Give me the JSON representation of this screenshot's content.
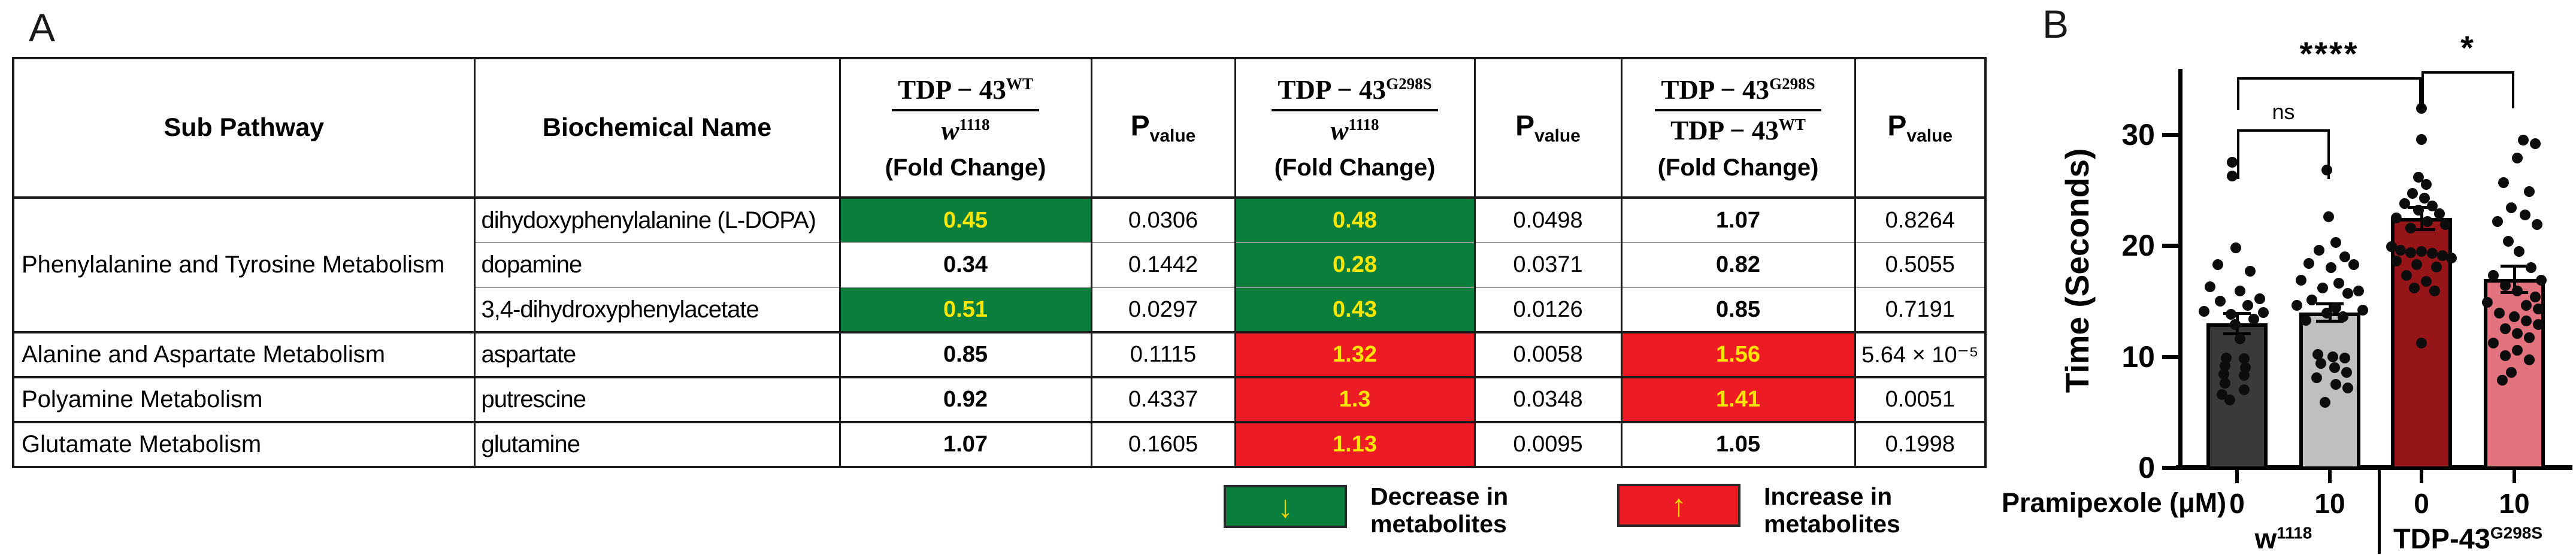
{
  "figure": {
    "panel_a_label": "A",
    "panel_b_label": "B"
  },
  "table": {
    "headers": {
      "sub_pathway": "Sub Pathway",
      "biochemical_name": "Biochemical Name",
      "fc1": {
        "num_base": "TDP − 43",
        "num_sup": "WT",
        "den_base": "w",
        "den_sup": "1118",
        "caption": "(Fold Change)"
      },
      "p": {
        "base": "P",
        "sub": "value"
      },
      "fc2": {
        "num_base": "TDP − 43",
        "num_sup": "G298S",
        "den_base": "w",
        "den_sup": "1118",
        "caption": "(Fold Change)"
      },
      "fc3": {
        "num_base": "TDP − 43",
        "num_sup": "G298S",
        "den_base": "TDP − 43",
        "den_sup": "WT",
        "caption": "(Fold Change)"
      }
    },
    "rows": [
      {
        "pathway": "Phenylalanine and Tyrosine Metabolism",
        "pathway_rowspan": 3,
        "group_start": true,
        "name": "dihydoxyphenylalanine (L-DOPA)",
        "cells": [
          {
            "v": "0.45",
            "bg": "green"
          },
          {
            "v": "0.0306",
            "bg": "white"
          },
          {
            "v": "0.48",
            "bg": "green"
          },
          {
            "v": "0.0498",
            "bg": "white"
          },
          {
            "v": "1.07",
            "bg": "white"
          },
          {
            "v": "0.8264",
            "bg": "white"
          }
        ]
      },
      {
        "name": "dopamine",
        "cells": [
          {
            "v": "0.34",
            "bg": "white"
          },
          {
            "v": "0.1442",
            "bg": "white"
          },
          {
            "v": "0.28",
            "bg": "green"
          },
          {
            "v": "0.0371",
            "bg": "white"
          },
          {
            "v": "0.82",
            "bg": "white"
          },
          {
            "v": "0.5055",
            "bg": "white"
          }
        ]
      },
      {
        "name": "3,4-dihydroxyphenylacetate",
        "cells": [
          {
            "v": "0.51",
            "bg": "green"
          },
          {
            "v": "0.0297",
            "bg": "white"
          },
          {
            "v": "0.43",
            "bg": "green"
          },
          {
            "v": "0.0126",
            "bg": "white"
          },
          {
            "v": "0.85",
            "bg": "white"
          },
          {
            "v": "0.7191",
            "bg": "white"
          }
        ]
      },
      {
        "pathway": "Alanine and Aspartate Metabolism",
        "pathway_rowspan": 1,
        "group_start": true,
        "name": "aspartate",
        "cells": [
          {
            "v": "0.85",
            "bg": "white"
          },
          {
            "v": "0.1115",
            "bg": "white"
          },
          {
            "v": "1.32",
            "bg": "red"
          },
          {
            "v": "0.0058",
            "bg": "white"
          },
          {
            "v": "1.56",
            "bg": "red"
          },
          {
            "v": "5.64 × 10⁻⁵",
            "bg": "white"
          }
        ]
      },
      {
        "pathway": "Polyamine Metabolism",
        "pathway_rowspan": 1,
        "group_start": true,
        "name": "putrescine",
        "cells": [
          {
            "v": "0.92",
            "bg": "white"
          },
          {
            "v": "0.4337",
            "bg": "white"
          },
          {
            "v": "1.3",
            "bg": "red"
          },
          {
            "v": "0.0348",
            "bg": "white"
          },
          {
            "v": "1.41",
            "bg": "red"
          },
          {
            "v": "0.0051",
            "bg": "white"
          }
        ]
      },
      {
        "pathway": "Glutamate Metabolism",
        "pathway_rowspan": 1,
        "group_start": true,
        "name": "glutamine",
        "cells": [
          {
            "v": "1.07",
            "bg": "white"
          },
          {
            "v": "0.1605",
            "bg": "white"
          },
          {
            "v": "1.13",
            "bg": "red"
          },
          {
            "v": "0.0095",
            "bg": "white"
          },
          {
            "v": "1.05",
            "bg": "white"
          },
          {
            "v": "0.1998",
            "bg": "white"
          }
        ]
      }
    ]
  },
  "legend": {
    "decrease": {
      "arrow": "↓",
      "line1": "Decrease in",
      "line2": "metabolites"
    },
    "increase": {
      "arrow": "↑",
      "line1": "Increase in",
      "line2": "metabolites"
    },
    "colors": {
      "green": "#0a7f3c",
      "red": "#ed1c24",
      "value_text": "#ffe600",
      "arrow": "#eed202"
    }
  },
  "chart_data": {
    "type": "bar",
    "title": "",
    "ylabel": "Time (Seconds)",
    "xlabel": "Pramipexole (μM)",
    "ylim": [
      0,
      36
    ],
    "yticks": [
      0,
      10,
      20,
      30
    ],
    "grid": false,
    "legend_position": "none",
    "categories": [
      "0",
      "10",
      "0",
      "10"
    ],
    "groups": [
      {
        "base": "w",
        "sup": "1118"
      },
      {
        "base": "TDP-43",
        "sup": "G298S"
      }
    ],
    "bars": [
      {
        "x_tick": "0",
        "group": "w1118",
        "mean": 13,
        "sem": 0.9,
        "color": "#3a3a3a",
        "points": [
          [
            -8,
            27.5
          ],
          [
            -8,
            26.3
          ],
          [
            -2,
            19.8
          ],
          [
            -32,
            18.3
          ],
          [
            22,
            17.7
          ],
          [
            -45,
            16.3
          ],
          [
            5,
            15.9
          ],
          [
            38,
            15.2
          ],
          [
            -28,
            15.0
          ],
          [
            18,
            14.6
          ],
          [
            -55,
            14.1
          ],
          [
            44,
            14.0
          ],
          [
            -10,
            13.8
          ],
          [
            28,
            13.4
          ],
          [
            -3,
            12.9
          ],
          [
            5,
            11.6
          ],
          [
            -18,
            9.9
          ],
          [
            12,
            9.8
          ],
          [
            -20,
            9.2
          ],
          [
            14,
            9.0
          ],
          [
            -22,
            8.4
          ],
          [
            12,
            8.3
          ],
          [
            -20,
            7.6
          ],
          [
            12,
            7.0
          ],
          [
            -25,
            6.6
          ],
          [
            -12,
            6.1
          ]
        ]
      },
      {
        "x_tick": "10",
        "group": "w1118",
        "mean": 14,
        "sem": 0.8,
        "color": "#c0bfbf",
        "points": [
          [
            -5,
            26.8
          ],
          [
            -2,
            22.6
          ],
          [
            10,
            20.3
          ],
          [
            -18,
            19.6
          ],
          [
            25,
            19.0
          ],
          [
            -35,
            18.4
          ],
          [
            40,
            18.3
          ],
          [
            2,
            18.0
          ],
          [
            -48,
            16.9
          ],
          [
            15,
            16.6
          ],
          [
            -12,
            16.2
          ],
          [
            48,
            15.9
          ],
          [
            30,
            15.7
          ],
          [
            -30,
            15.1
          ],
          [
            -55,
            14.6
          ],
          [
            10,
            14.4
          ],
          [
            55,
            14.2
          ],
          [
            -5,
            13.9
          ],
          [
            22,
            13.6
          ],
          [
            -40,
            13.3
          ],
          [
            -20,
            10.2
          ],
          [
            5,
            10.0
          ],
          [
            25,
            9.9
          ],
          [
            -15,
            9.4
          ],
          [
            8,
            9.0
          ],
          [
            28,
            8.6
          ],
          [
            -22,
            8.1
          ],
          [
            10,
            7.5
          ],
          [
            30,
            7.2
          ],
          [
            -8,
            5.9
          ]
        ]
      },
      {
        "x_tick": "0",
        "group": "TDP-43G298S",
        "mean": 22.5,
        "sem": 1.0,
        "color": "#951519",
        "points": [
          [
            0,
            32.4
          ],
          [
            0,
            29.6
          ],
          [
            -5,
            26.2
          ],
          [
            8,
            25.5
          ],
          [
            -15,
            24.7
          ],
          [
            5,
            24.3
          ],
          [
            -28,
            23.8
          ],
          [
            18,
            23.6
          ],
          [
            -5,
            23.2
          ],
          [
            30,
            22.9
          ],
          [
            -42,
            22.5
          ],
          [
            10,
            22.2
          ],
          [
            40,
            21.9
          ],
          [
            -18,
            21.6
          ],
          [
            -50,
            19.9
          ],
          [
            -35,
            19.6
          ],
          [
            0,
            19.5
          ],
          [
            -18,
            19.4
          ],
          [
            18,
            19.3
          ],
          [
            35,
            19.1
          ],
          [
            50,
            18.9
          ],
          [
            -42,
            18.6
          ],
          [
            -8,
            18.3
          ],
          [
            25,
            18.1
          ],
          [
            -25,
            17.3
          ],
          [
            8,
            16.8
          ],
          [
            -12,
            16.2
          ],
          [
            22,
            15.9
          ],
          [
            0,
            11.2
          ]
        ]
      },
      {
        "x_tick": "10",
        "group": "TDP-43G298S",
        "mean": 17,
        "sem": 1.2,
        "color": "#e2727e",
        "points": [
          [
            15,
            29.5
          ],
          [
            35,
            29.2
          ],
          [
            5,
            27.9
          ],
          [
            -18,
            25.7
          ],
          [
            25,
            24.9
          ],
          [
            -5,
            23.4
          ],
          [
            18,
            22.8
          ],
          [
            -28,
            22.2
          ],
          [
            38,
            21.9
          ],
          [
            -10,
            20.4
          ],
          [
            8,
            19.5
          ],
          [
            28,
            18.0
          ],
          [
            -35,
            17.3
          ],
          [
            45,
            16.9
          ],
          [
            -15,
            16.4
          ],
          [
            5,
            15.9
          ],
          [
            35,
            15.4
          ],
          [
            -45,
            14.9
          ],
          [
            20,
            14.6
          ],
          [
            40,
            14.3
          ],
          [
            -25,
            13.9
          ],
          [
            0,
            13.6
          ],
          [
            20,
            13.2
          ],
          [
            40,
            12.9
          ],
          [
            -15,
            12.5
          ],
          [
            5,
            12.1
          ],
          [
            25,
            11.7
          ],
          [
            -35,
            11.2
          ],
          [
            5,
            10.6
          ],
          [
            -15,
            10.1
          ],
          [
            25,
            9.7
          ],
          [
            -5,
            8.6
          ],
          [
            -20,
            7.9
          ]
        ]
      }
    ],
    "significance": [
      {
        "label": "ns",
        "bars": [
          0,
          1
        ],
        "y": 30.5,
        "drop": 4.5
      },
      {
        "label": "****",
        "bars": [
          0,
          2
        ],
        "y": 35.2,
        "drop": 3.0
      },
      {
        "label": "*",
        "bars": [
          2,
          3
        ],
        "y": 35.7,
        "drop": 3.3
      }
    ]
  }
}
